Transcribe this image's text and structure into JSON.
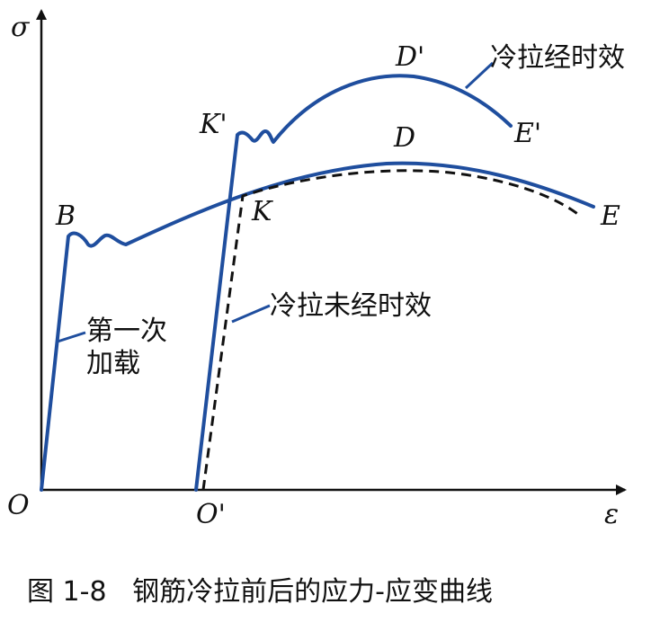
{
  "axes": {
    "y_symbol": "σ",
    "x_symbol": "ε",
    "origin": "O",
    "origin2": "O'"
  },
  "points": {
    "B": "B",
    "K": "K",
    "K_prime": "K'",
    "D": "D",
    "D_prime": "D'",
    "E": "E",
    "E_prime": "E'"
  },
  "annotations": {
    "first_loading_line1": "第一次",
    "first_loading_line2": "加载",
    "cold_drawn_no_aging": "冷拉未经时效",
    "cold_drawn_aging": "冷拉经时效"
  },
  "caption": "图 1-8   钢筋冷拉前后的应力-应变曲线",
  "colors": {
    "curve": "#1f4e9e",
    "axis": "#111111"
  }
}
